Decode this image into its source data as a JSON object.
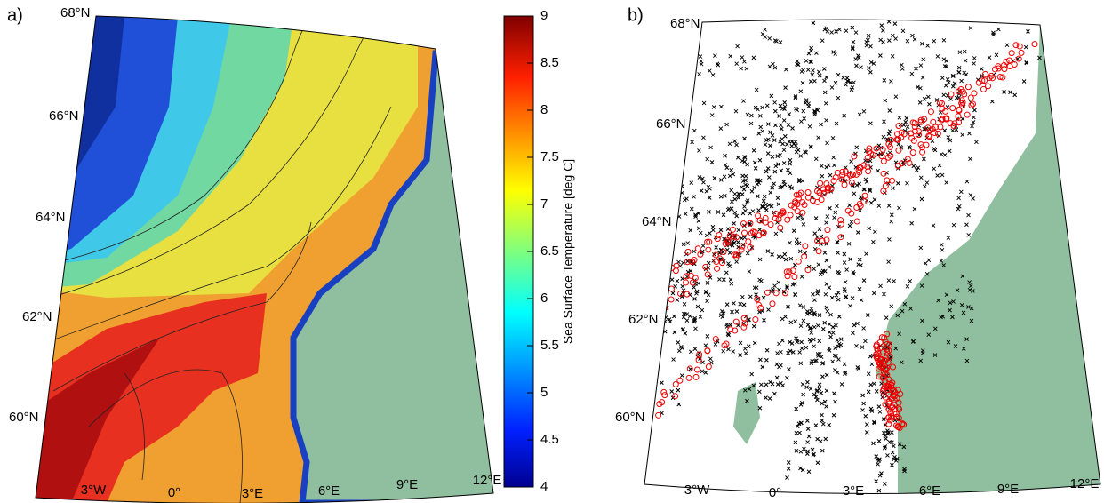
{
  "panels": [
    {
      "label": "a)",
      "lat_labels": [
        "68°N",
        "66°N",
        "64°N",
        "62°N",
        "60°N"
      ],
      "lon_labels": [
        "3°W",
        "0°",
        "3°E",
        "6°E",
        "9°E",
        "12°E"
      ]
    },
    {
      "label": "b)",
      "lat_labels": [
        "68°N",
        "66°N",
        "64°N",
        "62°N",
        "60°N"
      ],
      "lon_labels": [
        "3°W",
        "0°",
        "3°E",
        "6°E",
        "9°E",
        "12°E"
      ]
    }
  ],
  "colorbar": {
    "label": "Sea Surface Temperature [deg C]",
    "lim": [
      4,
      9
    ],
    "ticks": [
      4,
      4.5,
      5,
      5.5,
      6,
      6.5,
      7,
      7.5,
      8,
      8.5,
      9
    ]
  }
}
